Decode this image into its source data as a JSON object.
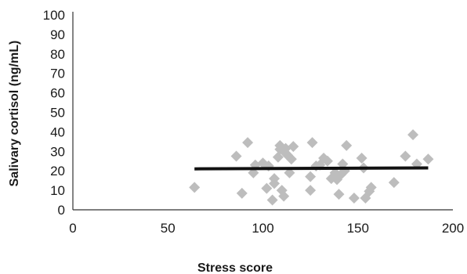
{
  "chart_data": {
    "type": "scatter",
    "title": "",
    "xlabel": "Stress score",
    "ylabel": "Salivary cortisol (ng/mL)",
    "xlim": [
      0,
      200
    ],
    "ylim": [
      0,
      100
    ],
    "xticks": [
      0,
      50,
      100,
      150,
      200
    ],
    "yticks": [
      0,
      10,
      20,
      30,
      40,
      50,
      60,
      70,
      80,
      90,
      100
    ],
    "grid": false,
    "legend": "none",
    "marker": "diamond",
    "marker_color": "#bdbdbd",
    "trendline": {
      "x": [
        64,
        187
      ],
      "y": [
        21,
        21.5
      ],
      "color": "#111111"
    },
    "points": [
      [
        64,
        11.5
      ],
      [
        86,
        27.5
      ],
      [
        89,
        8.5
      ],
      [
        92,
        34.5
      ],
      [
        95,
        19
      ],
      [
        96,
        23
      ],
      [
        100,
        24
      ],
      [
        102,
        11
      ],
      [
        103,
        22.5
      ],
      [
        105,
        5
      ],
      [
        106,
        13.5
      ],
      [
        106,
        16
      ],
      [
        108,
        27
      ],
      [
        109,
        31
      ],
      [
        109,
        33
      ],
      [
        110,
        10
      ],
      [
        111,
        7
      ],
      [
        112,
        29
      ],
      [
        112,
        31.5
      ],
      [
        113,
        28
      ],
      [
        114,
        19
      ],
      [
        115,
        26
      ],
      [
        116,
        32.5
      ],
      [
        125,
        17
      ],
      [
        125,
        10
      ],
      [
        126,
        34.5
      ],
      [
        128,
        22.5
      ],
      [
        130,
        23
      ],
      [
        132,
        26.5
      ],
      [
        134,
        25
      ],
      [
        136,
        16
      ],
      [
        138,
        19
      ],
      [
        139,
        15.5
      ],
      [
        140,
        8
      ],
      [
        141,
        18
      ],
      [
        142,
        23.5
      ],
      [
        143,
        20
      ],
      [
        144,
        33
      ],
      [
        148,
        6
      ],
      [
        152,
        26.5
      ],
      [
        153,
        21.5
      ],
      [
        154,
        6
      ],
      [
        156,
        9.5
      ],
      [
        157,
        11.5
      ],
      [
        169,
        14
      ],
      [
        175,
        27.5
      ],
      [
        179,
        38.5
      ],
      [
        181,
        23.5
      ],
      [
        187,
        26
      ]
    ]
  }
}
